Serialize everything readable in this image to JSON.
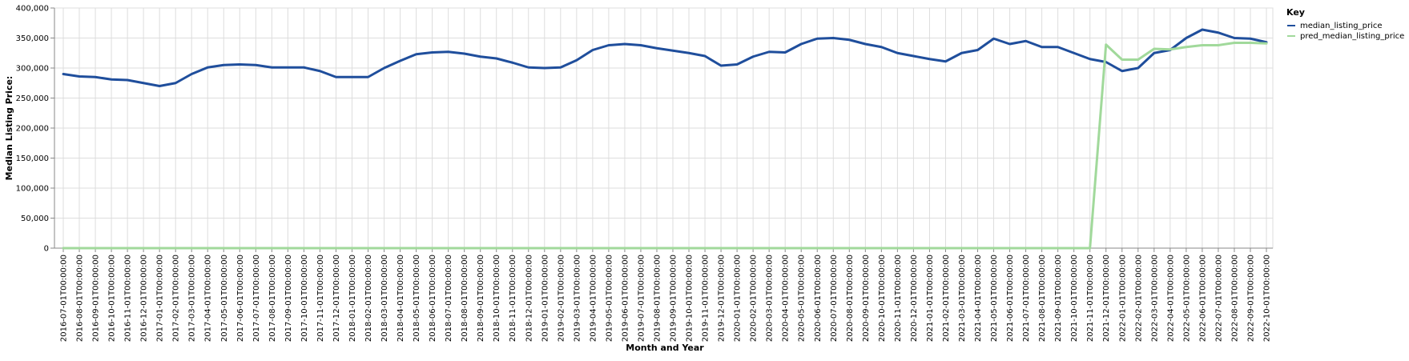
{
  "chart_data": {
    "type": "line",
    "xlabel": "Month and Year",
    "ylabel": "Median Listing Price:",
    "ylim": [
      0,
      400000
    ],
    "y_ticks": [
      0,
      50000,
      100000,
      150000,
      200000,
      250000,
      300000,
      350000,
      400000
    ],
    "y_tick_labels": [
      "0",
      "50,000",
      "100,000",
      "150,000",
      "200,000",
      "250,000",
      "300,000",
      "350,000",
      "400,000"
    ],
    "grid": true,
    "legend_title": "Key",
    "legend_position": "right",
    "categories": [
      "2016-07-01T00:00:00",
      "2016-08-01T00:00:00",
      "2016-09-01T00:00:00",
      "2016-10-01T00:00:00",
      "2016-11-01T00:00:00",
      "2016-12-01T00:00:00",
      "2017-01-01T00:00:00",
      "2017-02-01T00:00:00",
      "2017-03-01T00:00:00",
      "2017-04-01T00:00:00",
      "2017-05-01T00:00:00",
      "2017-06-01T00:00:00",
      "2017-07-01T00:00:00",
      "2017-08-01T00:00:00",
      "2017-09-01T00:00:00",
      "2017-10-01T00:00:00",
      "2017-11-01T00:00:00",
      "2017-12-01T00:00:00",
      "2018-01-01T00:00:00",
      "2018-02-01T00:00:00",
      "2018-03-01T00:00:00",
      "2018-04-01T00:00:00",
      "2018-05-01T00:00:00",
      "2018-06-01T00:00:00",
      "2018-07-01T00:00:00",
      "2018-08-01T00:00:00",
      "2018-09-01T00:00:00",
      "2018-10-01T00:00:00",
      "2018-11-01T00:00:00",
      "2018-12-01T00:00:00",
      "2019-01-01T00:00:00",
      "2019-02-01T00:00:00",
      "2019-03-01T00:00:00",
      "2019-04-01T00:00:00",
      "2019-05-01T00:00:00",
      "2019-06-01T00:00:00",
      "2019-07-01T00:00:00",
      "2019-08-01T00:00:00",
      "2019-09-01T00:00:00",
      "2019-10-01T00:00:00",
      "2019-11-01T00:00:00",
      "2019-12-01T00:00:00",
      "2020-01-01T00:00:00",
      "2020-02-01T00:00:00",
      "2020-03-01T00:00:00",
      "2020-04-01T00:00:00",
      "2020-05-01T00:00:00",
      "2020-06-01T00:00:00",
      "2020-07-01T00:00:00",
      "2020-08-01T00:00:00",
      "2020-09-01T00:00:00",
      "2020-10-01T00:00:00",
      "2020-11-01T00:00:00",
      "2020-12-01T00:00:00",
      "2021-01-01T00:00:00",
      "2021-02-01T00:00:00",
      "2021-03-01T00:00:00",
      "2021-04-01T00:00:00",
      "2021-05-01T00:00:00",
      "2021-06-01T00:00:00",
      "2021-07-01T00:00:00",
      "2021-08-01T00:00:00",
      "2021-09-01T00:00:00",
      "2021-10-01T00:00:00",
      "2021-11-01T00:00:00",
      "2021-12-01T00:00:00",
      "2022-01-01T00:00:00",
      "2022-02-01T00:00:00",
      "2022-03-01T00:00:00",
      "2022-04-01T00:00:00",
      "2022-05-01T00:00:00",
      "2022-06-01T00:00:00",
      "2022-07-01T00:00:00",
      "2022-08-01T00:00:00",
      "2022-09-01T00:00:00",
      "2022-10-01T00:00:00"
    ],
    "series": [
      {
        "name": "median_listing_price",
        "color": "#1f4e9c",
        "values": [
          290000,
          286000,
          285000,
          281000,
          280000,
          275000,
          270000,
          275000,
          290000,
          301000,
          305000,
          306000,
          305000,
          301000,
          301000,
          301000,
          295000,
          285000,
          285000,
          285000,
          300000,
          312000,
          323000,
          326000,
          327000,
          324000,
          319000,
          316000,
          309000,
          301000,
          300000,
          301000,
          313000,
          330000,
          338000,
          340000,
          338000,
          333000,
          329000,
          325000,
          320000,
          304000,
          306000,
          319000,
          327000,
          326000,
          340000,
          349000,
          350000,
          347000,
          340000,
          335000,
          325000,
          320000,
          315000,
          311000,
          325000,
          330000,
          349000,
          340000,
          345000,
          335000,
          335000,
          325000,
          315000,
          310000,
          295000,
          300000,
          325000,
          330000,
          350000,
          364000,
          359000,
          350000,
          349000,
          343000
        ]
      },
      {
        "name": "pred_median_listing_price",
        "color": "#a1d99b",
        "values": [
          0,
          0,
          0,
          0,
          0,
          0,
          0,
          0,
          0,
          0,
          0,
          0,
          0,
          0,
          0,
          0,
          0,
          0,
          0,
          0,
          0,
          0,
          0,
          0,
          0,
          0,
          0,
          0,
          0,
          0,
          0,
          0,
          0,
          0,
          0,
          0,
          0,
          0,
          0,
          0,
          0,
          0,
          0,
          0,
          0,
          0,
          0,
          0,
          0,
          0,
          0,
          0,
          0,
          0,
          0,
          0,
          0,
          0,
          0,
          0,
          0,
          0,
          0,
          0,
          0,
          339000,
          314000,
          314000,
          332000,
          331000,
          335000,
          338000,
          338000,
          342000,
          342000,
          341000
        ]
      }
    ]
  }
}
